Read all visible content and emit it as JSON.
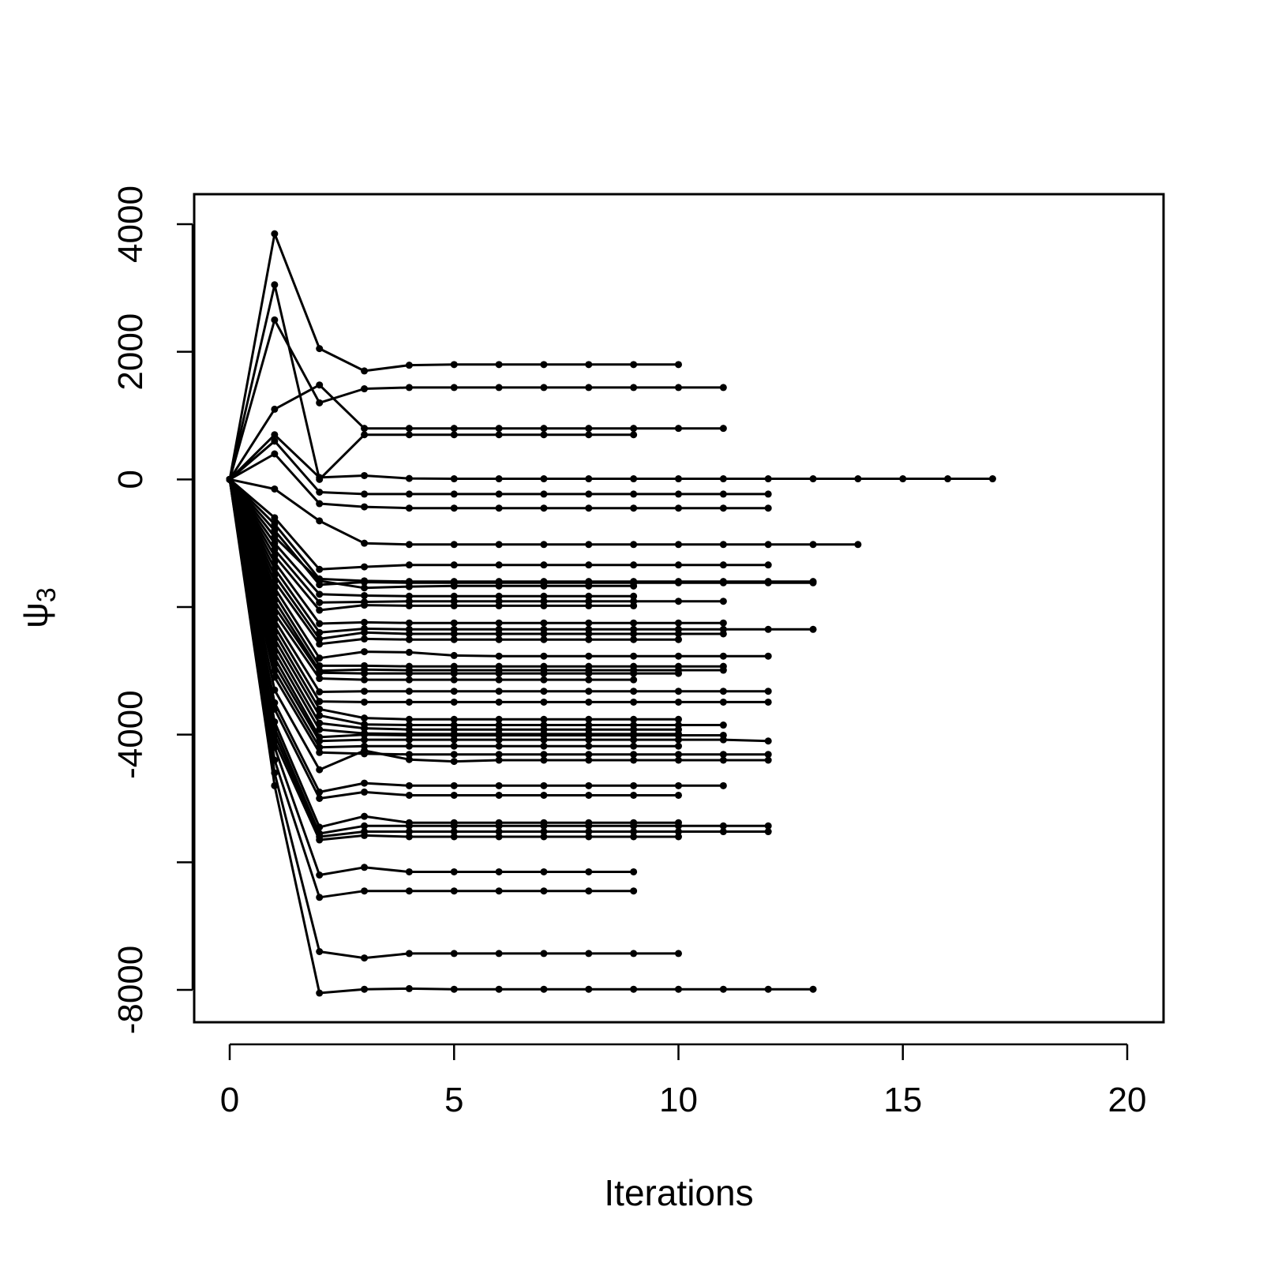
{
  "chart_data": {
    "type": "line",
    "xlabel": "Iterations",
    "ylabel_symbol": "ψ",
    "ylabel_subscript": "3",
    "xlim": [
      0,
      20
    ],
    "ylim": [
      -8500,
      4500
    ],
    "x_ticks": [
      0,
      5,
      10,
      15,
      20
    ],
    "x_tick_labels": [
      "0",
      "5",
      "10",
      "15",
      "20"
    ],
    "y_ticks": [
      4000,
      2000,
      0,
      -4000,
      -8000
    ],
    "y_tick_labels": [
      "4000",
      "2000",
      "0",
      "-4000",
      "-8000"
    ],
    "y_minor_ticks": [
      -2000,
      -6000
    ],
    "grid": false,
    "legend": "none",
    "line_color": "#000000",
    "series": [
      {
        "values": [
          0,
          3850,
          2050,
          1700,
          1790,
          1800,
          1800,
          1800,
          1800,
          1800,
          1800
        ]
      },
      {
        "values": [
          0,
          2500,
          1200,
          1420,
          1440,
          1440,
          1440,
          1440,
          1440,
          1440,
          1440,
          1440
        ]
      },
      {
        "values": [
          0,
          3050,
          0,
          700,
          700,
          700,
          700,
          700,
          700,
          700
        ]
      },
      {
        "values": [
          0,
          1100,
          1480,
          800,
          800,
          800,
          800,
          800,
          800,
          800,
          800,
          800
        ]
      },
      {
        "values": [
          0,
          700,
          30,
          60,
          15,
          10,
          10,
          10,
          10,
          10,
          10,
          10,
          10,
          10,
          10,
          10,
          10,
          10
        ]
      },
      {
        "values": [
          0,
          600,
          -200,
          -230,
          -230,
          -230,
          -230,
          -230,
          -230,
          -230,
          -230,
          -230,
          -230
        ]
      },
      {
        "values": [
          0,
          400,
          -380,
          -430,
          -450,
          -450,
          -450,
          -450,
          -450,
          -450,
          -450,
          -450,
          -450
        ]
      },
      {
        "values": [
          0,
          -150,
          -650,
          -1000,
          -1020,
          -1020,
          -1020,
          -1020,
          -1020,
          -1020,
          -1020,
          -1020,
          -1020,
          -1020,
          -1020
        ]
      },
      {
        "values": [
          0,
          -600,
          -1410,
          -1370,
          -1340,
          -1340,
          -1340,
          -1340,
          -1340,
          -1340,
          -1340,
          -1340,
          -1340
        ]
      },
      {
        "values": [
          0,
          -700,
          -1560,
          -1590,
          -1600,
          -1600,
          -1600,
          -1600,
          -1600,
          -1600,
          -1600,
          -1600,
          -1600,
          -1600
        ]
      },
      {
        "values": [
          0,
          -800,
          -1650,
          -1610,
          -1620,
          -1620,
          -1620,
          -1620,
          -1620,
          -1620,
          -1620,
          -1620,
          -1620,
          -1620
        ]
      },
      {
        "values": [
          0,
          -900,
          -1590,
          -1700,
          -1680,
          -1670,
          -1670,
          -1670,
          -1670,
          -1670
        ]
      },
      {
        "values": [
          0,
          -1000,
          -1800,
          -1820,
          -1830,
          -1830,
          -1830,
          -1830,
          -1830,
          -1830
        ]
      },
      {
        "values": [
          0,
          -1100,
          -1930,
          -1920,
          -1910,
          -1910,
          -1910,
          -1910,
          -1910,
          -1910,
          -1910,
          -1910
        ]
      },
      {
        "values": [
          0,
          -1200,
          -2050,
          -1970,
          -1980,
          -1980,
          -1980,
          -1980,
          -1980,
          -1980
        ]
      },
      {
        "values": [
          0,
          -1300,
          -2260,
          -2240,
          -2250,
          -2250,
          -2250,
          -2250,
          -2250,
          -2250,
          -2250,
          -2250
        ]
      },
      {
        "values": [
          0,
          -1400,
          -2400,
          -2340,
          -2350,
          -2350,
          -2350,
          -2350,
          -2350,
          -2350,
          -2350,
          -2350,
          -2350,
          -2350
        ]
      },
      {
        "values": [
          0,
          -1500,
          -2500,
          -2400,
          -2420,
          -2420,
          -2420,
          -2420,
          -2420,
          -2420,
          -2420,
          -2420
        ]
      },
      {
        "values": [
          0,
          -1600,
          -2580,
          -2500,
          -2510,
          -2510,
          -2510,
          -2510,
          -2510,
          -2510,
          -2510
        ]
      },
      {
        "values": [
          0,
          -1700,
          -2800,
          -2700,
          -2710,
          -2760,
          -2770,
          -2770,
          -2770,
          -2770,
          -2770,
          -2770,
          -2770
        ]
      },
      {
        "values": [
          0,
          -1800,
          -2920,
          -2920,
          -2930,
          -2930,
          -2930,
          -2930,
          -2930,
          -2930,
          -2930,
          -2930
        ]
      },
      {
        "values": [
          0,
          -1900,
          -3000,
          -2980,
          -2990,
          -2990,
          -2990,
          -2990,
          -2990,
          -2990,
          -2990,
          -2990
        ]
      },
      {
        "values": [
          0,
          -2000,
          -3030,
          -3040,
          -3040,
          -3040,
          -3040,
          -3040,
          -3040,
          -3040,
          -3040
        ]
      },
      {
        "values": [
          0,
          -2100,
          -3120,
          -3140,
          -3140,
          -3140,
          -3140,
          -3140,
          -3140,
          -3140
        ]
      },
      {
        "values": [
          0,
          -2200,
          -3330,
          -3320,
          -3320,
          -3320,
          -3320,
          -3320,
          -3320,
          -3320,
          -3320,
          -3320,
          -3320
        ]
      },
      {
        "values": [
          0,
          -2300,
          -3480,
          -3490,
          -3490,
          -3490,
          -3490,
          -3490,
          -3490,
          -3490,
          -3490,
          -3490,
          -3490
        ]
      },
      {
        "values": [
          0,
          -2400,
          -3600,
          -3740,
          -3760,
          -3760,
          -3760,
          -3760,
          -3760,
          -3760,
          -3760
        ]
      },
      {
        "values": [
          0,
          -2500,
          -3700,
          -3840,
          -3850,
          -3850,
          -3850,
          -3850,
          -3850,
          -3850,
          -3850,
          -3850
        ]
      },
      {
        "values": [
          0,
          -2600,
          -3820,
          -3900,
          -3920,
          -3920,
          -3920,
          -3920,
          -3920,
          -3920,
          -3920
        ]
      },
      {
        "values": [
          0,
          -2700,
          -3920,
          -3980,
          -3990,
          -3990,
          -3990,
          -3990,
          -3990,
          -3990,
          -3990
        ]
      },
      {
        "values": [
          0,
          -2800,
          -4040,
          -4000,
          -4010,
          -4010,
          -4010,
          -4010,
          -4010,
          -4010,
          -4010,
          -4010
        ]
      },
      {
        "values": [
          0,
          -2900,
          -4100,
          -4080,
          -4080,
          -4080,
          -4080,
          -4080,
          -4080,
          -4080,
          -4080,
          -4080,
          -4100
        ]
      },
      {
        "values": [
          0,
          -3000,
          -4200,
          -4180,
          -4180,
          -4180,
          -4180,
          -4180,
          -4180,
          -4180,
          -4180
        ]
      },
      {
        "values": [
          0,
          -3100,
          -4280,
          -4300,
          -4310,
          -4310,
          -4310,
          -4310,
          -4310,
          -4310,
          -4310,
          -4310,
          -4310
        ]
      },
      {
        "values": [
          0,
          -3300,
          -4550,
          -4250,
          -4390,
          -4420,
          -4400,
          -4400,
          -4400,
          -4400,
          -4400,
          -4400,
          -4400
        ]
      },
      {
        "values": [
          0,
          -3500,
          -4900,
          -4760,
          -4800,
          -4800,
          -4800,
          -4800,
          -4800,
          -4800,
          -4800,
          -4800
        ]
      },
      {
        "values": [
          0,
          -3600,
          -5000,
          -4900,
          -4950,
          -4950,
          -4950,
          -4950,
          -4950,
          -4950,
          -4950
        ]
      },
      {
        "values": [
          0,
          -3800,
          -5450,
          -5280,
          -5380,
          -5380,
          -5380,
          -5380,
          -5380,
          -5380,
          -5380
        ]
      },
      {
        "values": [
          0,
          -3900,
          -5550,
          -5430,
          -5430,
          -5430,
          -5430,
          -5430,
          -5430,
          -5430,
          -5430,
          -5430,
          -5430
        ]
      },
      {
        "values": [
          0,
          -4000,
          -5600,
          -5520,
          -5520,
          -5520,
          -5520,
          -5520,
          -5520,
          -5520,
          -5520,
          -5520,
          -5520
        ]
      },
      {
        "values": [
          0,
          -4100,
          -5650,
          -5580,
          -5600,
          -5600,
          -5600,
          -5600,
          -5600,
          -5600,
          -5600
        ]
      },
      {
        "values": [
          0,
          -4200,
          -6200,
          -6080,
          -6150,
          -6150,
          -6150,
          -6150,
          -6150,
          -6150
        ]
      },
      {
        "values": [
          0,
          -4400,
          -6550,
          -6450,
          -6450,
          -6450,
          -6450,
          -6450,
          -6450,
          -6450
        ]
      },
      {
        "values": [
          0,
          -4600,
          -7400,
          -7500,
          -7430,
          -7430,
          -7430,
          -7430,
          -7430,
          -7430,
          -7430
        ]
      },
      {
        "values": [
          0,
          -4800,
          -8050,
          -7990,
          -7980,
          -7990,
          -7990,
          -7990,
          -7990,
          -7990,
          -7990,
          -7990,
          -7990,
          -7990
        ]
      }
    ]
  }
}
